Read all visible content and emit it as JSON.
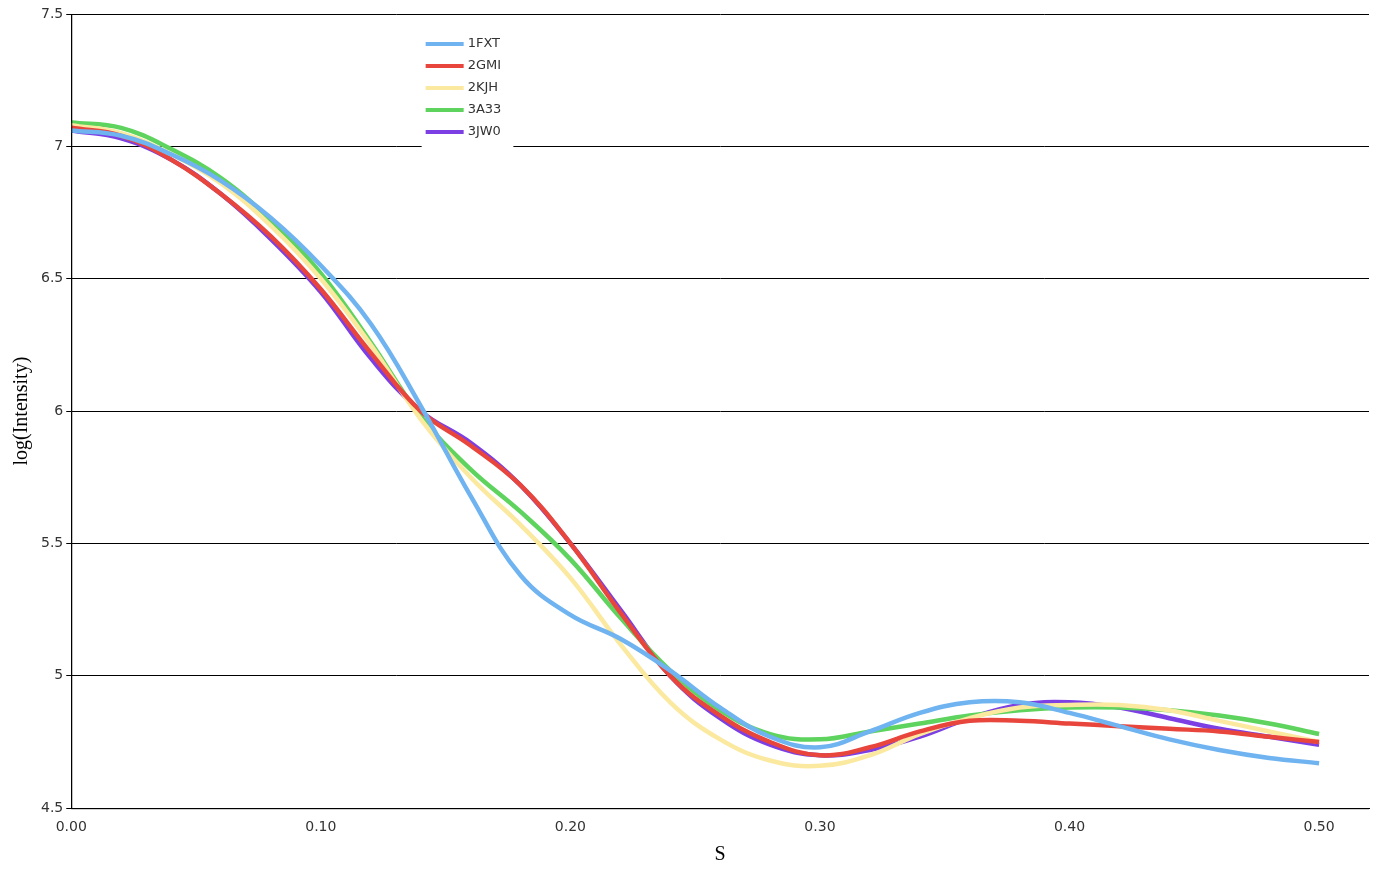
{
  "chart_data": {
    "type": "line",
    "x_label": "S",
    "y_label": "log(Intensity)",
    "x": [
      0,
      0.02,
      0.04,
      0.06,
      0.08,
      0.1,
      0.12,
      0.14,
      0.16,
      0.18,
      0.2,
      0.22,
      0.24,
      0.26,
      0.28,
      0.3,
      0.32,
      0.34,
      0.36,
      0.38,
      0.4,
      0.42,
      0.44,
      0.46,
      0.48,
      0.5
    ],
    "series": [
      {
        "name": "1FXT",
        "color": "#6fb3f0",
        "values": [
          7.06,
          7.04,
          6.97,
          6.87,
          6.73,
          6.55,
          6.33,
          6.02,
          5.68,
          5.38,
          5.23,
          5.14,
          5.02,
          4.88,
          4.77,
          4.73,
          4.79,
          4.86,
          4.9,
          4.9,
          4.86,
          4.81,
          4.76,
          4.72,
          4.69,
          4.67
        ]
      },
      {
        "name": "2GMI",
        "color": "#e8453c",
        "values": [
          7.07,
          7.04,
          6.95,
          6.82,
          6.66,
          6.46,
          6.22,
          6.0,
          5.87,
          5.72,
          5.5,
          5.24,
          5.0,
          4.85,
          4.75,
          4.7,
          4.73,
          4.79,
          4.83,
          4.83,
          4.82,
          4.81,
          4.8,
          4.79,
          4.77,
          4.75
        ]
      },
      {
        "name": "2KJH",
        "color": "#fbe9a0",
        "values": [
          7.08,
          7.05,
          6.97,
          6.86,
          6.7,
          6.5,
          6.25,
          5.97,
          5.75,
          5.57,
          5.37,
          5.12,
          4.9,
          4.76,
          4.68,
          4.66,
          4.7,
          4.78,
          4.84,
          4.88,
          4.89,
          4.89,
          4.87,
          4.83,
          4.79,
          4.75
        ]
      },
      {
        "name": "3A33",
        "color": "#5ed35e",
        "values": [
          7.09,
          7.07,
          6.99,
          6.88,
          6.72,
          6.52,
          6.26,
          5.98,
          5.78,
          5.62,
          5.44,
          5.22,
          5.02,
          4.87,
          4.78,
          4.76,
          4.79,
          4.82,
          4.85,
          4.87,
          4.88,
          4.88,
          4.87,
          4.85,
          4.82,
          4.78
        ]
      },
      {
        "name": "3JW0",
        "color": "#7b3fe4",
        "values": [
          7.06,
          7.03,
          6.95,
          6.82,
          6.65,
          6.45,
          6.2,
          6.0,
          5.88,
          5.72,
          5.5,
          5.25,
          5.0,
          4.84,
          4.74,
          4.7,
          4.72,
          4.77,
          4.84,
          4.89,
          4.9,
          4.88,
          4.84,
          4.8,
          4.77,
          4.74
        ]
      }
    ],
    "xlim": [
      0,
      0.52
    ],
    "xticks": [
      {
        "value": 0,
        "label": "0.00"
      },
      {
        "value": 0.1,
        "label": "0.10"
      },
      {
        "value": 0.2,
        "label": "0.20"
      },
      {
        "value": 0.3,
        "label": "0.30"
      },
      {
        "value": 0.4,
        "label": "0.40"
      },
      {
        "value": 0.5,
        "label": "0.50"
      }
    ],
    "ylim": [
      4.5,
      7.5
    ],
    "yticks": [
      4.5,
      5,
      5.5,
      6,
      6.5,
      7,
      7.5
    ],
    "grid": true,
    "legend": "upper left"
  }
}
